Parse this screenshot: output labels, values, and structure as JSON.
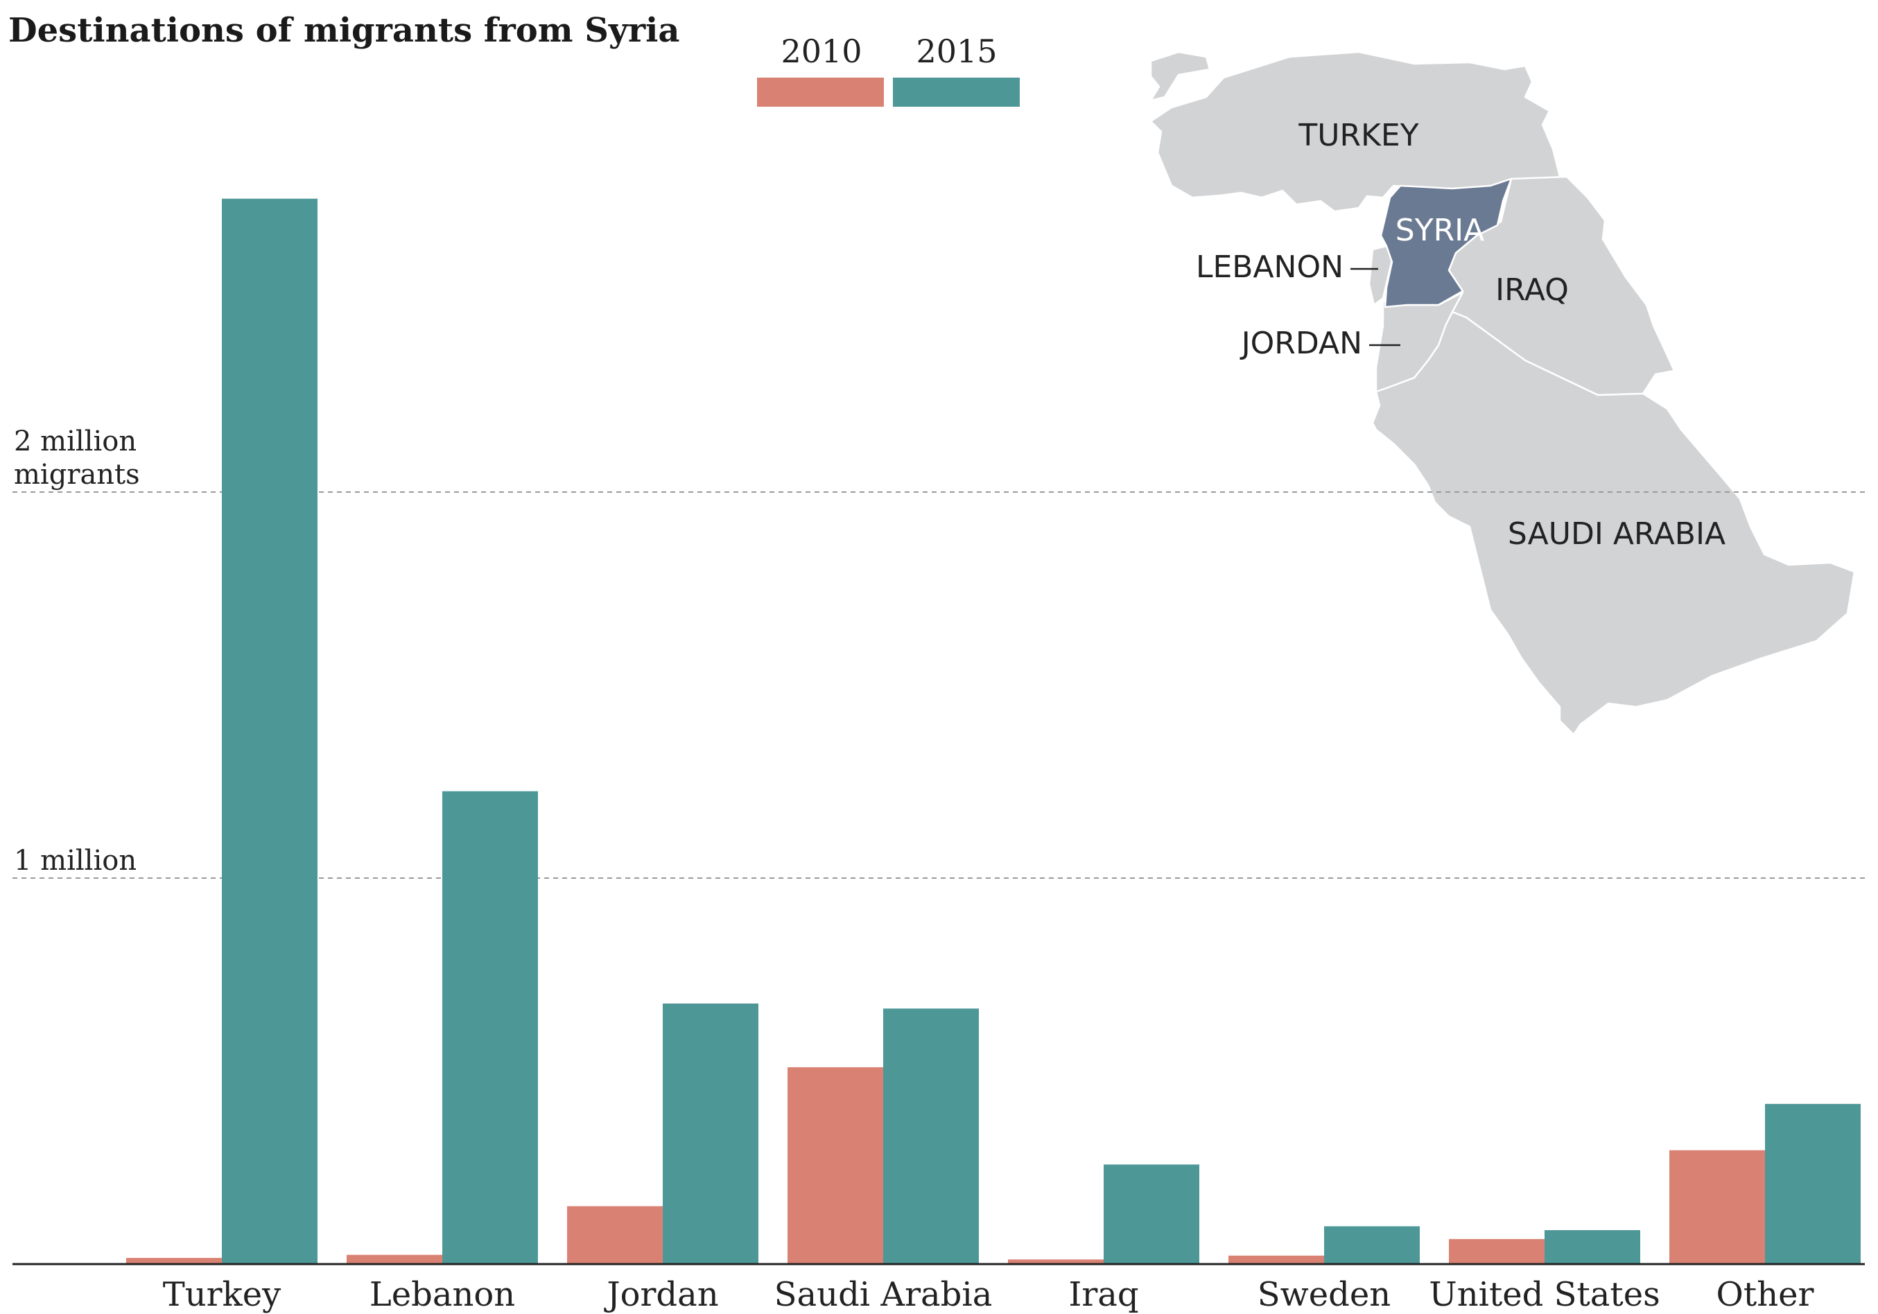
{
  "colors": {
    "y2010": "#d98273",
    "y2015": "#4e9797",
    "land": "#d2d3d5",
    "syria": "#6b7a93",
    "baseline": "#222222",
    "grid": "#9a9a9a"
  },
  "chart_data": {
    "type": "bar",
    "title": "Destinations of migrants from Syria",
    "categories": [
      "Turkey",
      "Lebanon",
      "Jordan",
      "Saudi Arabia",
      "Iraq",
      "Sweden",
      "United States",
      "Other"
    ],
    "series": [
      {
        "name": "2010",
        "values": [
          16000,
          24000,
          150000,
          510000,
          12000,
          22000,
          65000,
          295000
        ]
      },
      {
        "name": "2015",
        "values": [
          2760000,
          1225000,
          675000,
          662000,
          258000,
          98000,
          88000,
          415000
        ]
      }
    ],
    "ylim": [
      0,
      3000000
    ],
    "gridlines": [
      {
        "value": 2000000,
        "label_line1": "2 million",
        "label_line2": "migrants"
      },
      {
        "value": 1000000,
        "label_line1": "1 million",
        "label_line2": ""
      }
    ],
    "legend_position": "top-center",
    "grid": true
  },
  "map": {
    "labels": {
      "turkey": "TURKEY",
      "syria": "SYRIA",
      "lebanon": "LEBANON",
      "iraq": "IRAQ",
      "jordan": "JORDAN",
      "saudi": "SAUDI ARABIA"
    }
  }
}
